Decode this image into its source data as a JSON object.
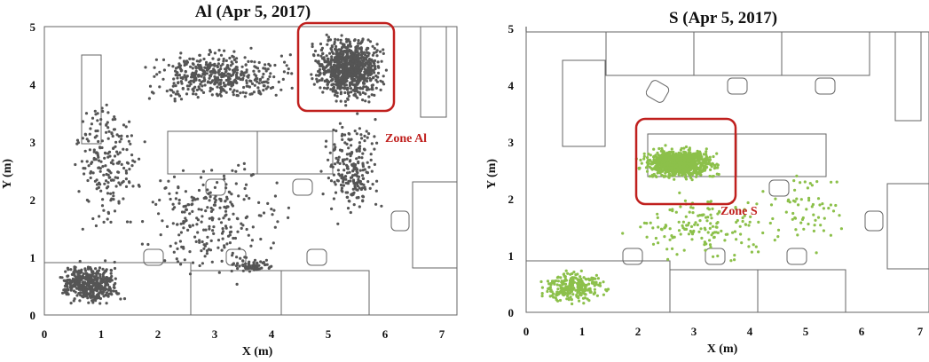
{
  "chart_data": [
    {
      "type": "scatter",
      "title": "Al (Apr 5, 2017)",
      "xlabel": "X (m)",
      "ylabel": "Y (m)",
      "xlim": [
        0,
        7.3
      ],
      "ylim": [
        0,
        5
      ],
      "xticks": [
        "0",
        "1",
        "2",
        "3",
        "4",
        "5",
        "6",
        "7"
      ],
      "yticks": [
        "0",
        "1",
        "2",
        "3",
        "4",
        "5"
      ],
      "marker_color": "#555555",
      "highlight_color": "#c0201e",
      "zone": {
        "label": "Zone Al",
        "x": [
          4.5,
          6.15
        ],
        "y": [
          3.5,
          5.0
        ]
      },
      "clusters": [
        {
          "region": "zone",
          "x": [
            4.6,
            6.1
          ],
          "y": [
            3.6,
            4.95
          ],
          "points": 900
        },
        {
          "region": "top band",
          "x": [
            1.5,
            4.6
          ],
          "y": [
            3.6,
            4.7
          ],
          "points": 450
        },
        {
          "region": "left arc",
          "x": [
            0.4,
            1.9
          ],
          "y": [
            1.2,
            4.0
          ],
          "points": 200
        },
        {
          "region": "bottom-left",
          "x": [
            0.1,
            1.5
          ],
          "y": [
            0.1,
            1.0
          ],
          "points": 450
        },
        {
          "region": "right trail",
          "x": [
            4.8,
            6.0
          ],
          "y": [
            1.5,
            3.6
          ],
          "points": 220
        },
        {
          "region": "centre scatter",
          "x": [
            1.5,
            4.5
          ],
          "y": [
            0.3,
            3.0
          ],
          "points": 250
        },
        {
          "region": "lower centre",
          "x": [
            3.2,
            4.2
          ],
          "y": [
            0.7,
            1.0
          ],
          "points": 60
        }
      ]
    },
    {
      "type": "scatter",
      "title": "S (Apr 5, 2017)",
      "xlabel": "X (m)",
      "ylabel": "Y (m)",
      "xlim": [
        0,
        7.3
      ],
      "ylim": [
        0,
        5
      ],
      "xticks": [
        "0",
        "1",
        "2",
        "3",
        "4",
        "5",
        "6",
        "7"
      ],
      "yticks": [
        "0",
        "1",
        "2",
        "3",
        "4",
        "5"
      ],
      "marker_color": "#8cc04a",
      "highlight_color": "#c0201e",
      "zone": {
        "label": "Zone S",
        "x": [
          1.95,
          3.7
        ],
        "y": [
          1.95,
          3.4
        ]
      },
      "clusters": [
        {
          "region": "zone",
          "x": [
            1.9,
            3.6
          ],
          "y": [
            2.3,
            2.95
          ],
          "points": 850
        },
        {
          "region": "bottom-left",
          "x": [
            0.1,
            1.6
          ],
          "y": [
            0.1,
            0.8
          ],
          "points": 280
        },
        {
          "region": "diagonal",
          "x": [
            1.5,
            4.9
          ],
          "y": [
            0.8,
            2.2
          ],
          "points": 160
        },
        {
          "region": "right trail",
          "x": [
            4.0,
            6.0
          ],
          "y": [
            1.0,
            2.6
          ],
          "points": 60
        }
      ]
    }
  ]
}
